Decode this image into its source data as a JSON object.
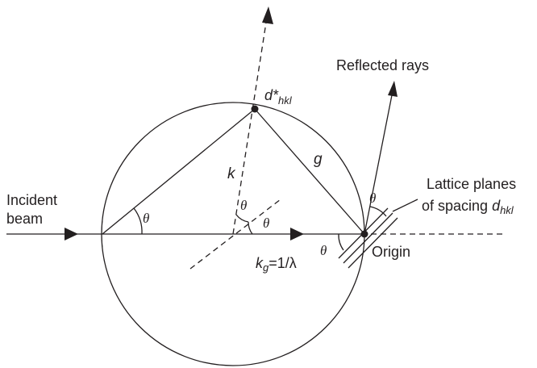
{
  "labels": {
    "incident_line1": "Incident",
    "incident_line2": "beam",
    "reflected": "Reflected rays",
    "lattice_line1": "Lattice planes",
    "lattice_line2_prefix": "of spacing ",
    "lattice_line2_var": "d",
    "lattice_line2_sub": "hkl",
    "origin": "Origin",
    "d_star": "d*",
    "d_star_sub": "hkl",
    "k": "k",
    "g": "g",
    "kg_var": "k",
    "kg_sub": "g",
    "kg_value": "=1/λ"
  },
  "angle_labels": {
    "theta": "θ"
  },
  "colors": {
    "ink": "#231f20",
    "background": "#ffffff"
  }
}
